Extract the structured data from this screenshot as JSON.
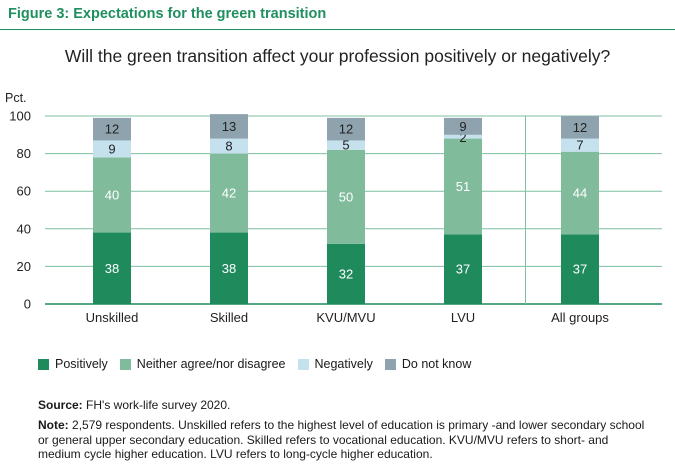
{
  "figure_label": "Figure 3: Expectations for the green transition",
  "chart_data": {
    "type": "bar",
    "stacked": true,
    "title": "Will the green transition affect your profession positively or negatively?",
    "ylabel": "Pct.",
    "xlabel": "",
    "ylim": [
      0,
      100
    ],
    "yticks": [
      0,
      20,
      40,
      60,
      80,
      100
    ],
    "grid": true,
    "categories": [
      "Unskilled",
      "Skilled",
      "KVU/MVU",
      "LVU",
      "All groups"
    ],
    "series": [
      {
        "name": "Positively",
        "color": "#1f8a5c",
        "values": [
          38,
          38,
          32,
          37,
          37
        ]
      },
      {
        "name": "Neither agree/nor disagree",
        "color": "#80bb9c",
        "values": [
          40,
          42,
          50,
          51,
          44
        ]
      },
      {
        "name": "Negatively",
        "color": "#c5e1ee",
        "values": [
          9,
          8,
          5,
          2,
          7
        ]
      },
      {
        "name": "Do not know",
        "color": "#8fa3ae",
        "values": [
          12,
          13,
          12,
          9,
          12
        ]
      }
    ],
    "legend_position": "bottom-left"
  },
  "source": {
    "label": "Source:",
    "text": "FH's work-life survey 2020."
  },
  "note": {
    "label": "Note:",
    "text": "2,579 respondents. Unskilled refers to the highest level of education is primary -and lower secondary school or general upper secondary education. Skilled refers to vocational education. KVU/MVU refers to short- and medium cycle higher education. LVU refers to long-cycle higher education."
  }
}
